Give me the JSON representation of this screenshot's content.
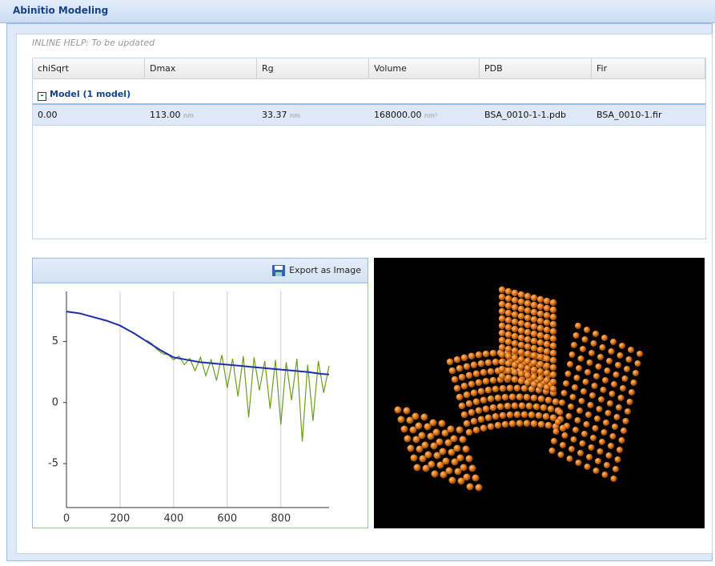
{
  "window": {
    "title": "Abinitio Modeling"
  },
  "help": "INLINE HELP: To be updated",
  "table": {
    "columns": [
      "chiSqrt",
      "Dmax",
      "Rg",
      "Volume",
      "PDB",
      "Fir"
    ],
    "group": "Model (1 model)",
    "rows": [
      [
        {
          "text": "0.00"
        },
        {
          "text": "113.00",
          "unit": "nm"
        },
        {
          "text": "33.37",
          "unit": "nm"
        },
        {
          "text": "168000.00",
          "unit": "nm³"
        },
        {
          "text": "BSA_0010-1-1.pdb"
        },
        {
          "text": "BSA_0010-1.fir"
        }
      ]
    ]
  },
  "export_button": "Export as Image",
  "chart_data": {
    "type": "line",
    "xlim": [
      0,
      980
    ],
    "ylim": [
      -8.6,
      9.1
    ],
    "xticks": [
      0,
      200,
      400,
      600,
      800
    ],
    "yticks": [
      -5,
      0,
      5
    ],
    "grid": true,
    "series": [
      {
        "color": "#6b9e1f",
        "x": [
          300,
          320,
          340,
          360,
          380,
          400,
          420,
          440,
          460,
          480,
          500,
          520,
          540,
          560,
          580,
          600,
          620,
          640,
          660,
          680,
          700,
          720,
          740,
          760,
          780,
          800,
          820,
          840,
          860,
          880,
          900,
          920,
          940,
          960,
          980
        ],
        "values": [
          5.1,
          4.8,
          4.3,
          4.0,
          3.9,
          3.5,
          3.8,
          3.1,
          3.6,
          2.6,
          3.7,
          2.2,
          3.5,
          1.8,
          3.9,
          1.2,
          3.6,
          0.5,
          3.8,
          -1.2,
          3.7,
          1.0,
          3.4,
          -0.5,
          3.5,
          -1.8,
          3.3,
          0.2,
          3.6,
          -3.2,
          3.1,
          -1.5,
          3.4,
          0.8,
          3.0
        ]
      },
      {
        "color": "#1f2fa8",
        "x": [
          0,
          50,
          100,
          150,
          200,
          250,
          300,
          350,
          400,
          450,
          500,
          550,
          600,
          650,
          700,
          750,
          800,
          850,
          900,
          950,
          980
        ],
        "values": [
          7.45,
          7.3,
          7.0,
          6.7,
          6.3,
          5.7,
          5.0,
          4.3,
          3.7,
          3.5,
          3.3,
          3.2,
          3.1,
          3.0,
          2.9,
          2.8,
          2.7,
          2.6,
          2.5,
          2.35,
          2.3
        ]
      }
    ]
  }
}
